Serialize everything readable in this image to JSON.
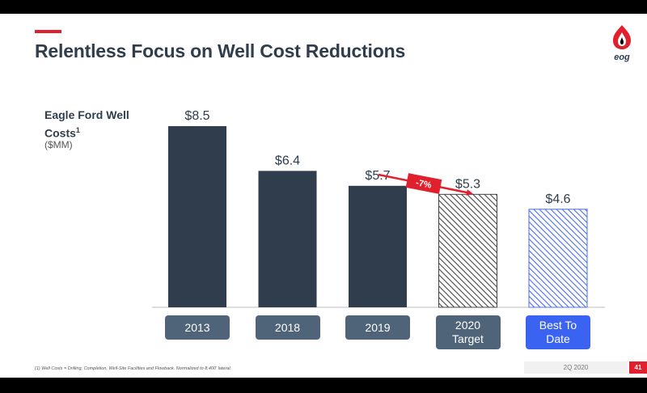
{
  "slide": {
    "title": "Relentless Focus on Well Cost Reductions",
    "subtitle_line1": "Eagle Ford Well",
    "subtitle_line2": "Costs",
    "subtitle_sup": "1",
    "unit": "($MM)",
    "logo_text": "eog",
    "footnote": "(1)   Well Costs = Drilling, Completion, Well-Site Facilities and Flowback. Normalized to 8,400' lateral.",
    "date": "2Q 2020",
    "page": "41"
  },
  "chart_data": {
    "type": "bar",
    "categories": [
      "2013",
      "2018",
      "2019",
      "2020 Target",
      "Best To Date"
    ],
    "values": [
      8.5,
      6.4,
      5.7,
      5.3,
      4.6
    ],
    "data_labels": [
      "$8.5",
      "$6.4",
      "$5.7",
      "$5.3",
      "$4.6"
    ],
    "bar_styles": [
      "solid",
      "solid",
      "solid",
      "hatched",
      "hatched"
    ],
    "annotation": "-7%",
    "ylim": [
      0,
      8.5
    ],
    "title": "",
    "xlabel": "",
    "ylabel": "",
    "colors": {
      "solid": "#2f3d4c",
      "target_hatch": "#454545",
      "best_hatch": "#4a6cf0",
      "label_box_dark": "#4f6479",
      "label_box_best": "#3b63f2",
      "accent": "#e0202c"
    }
  }
}
